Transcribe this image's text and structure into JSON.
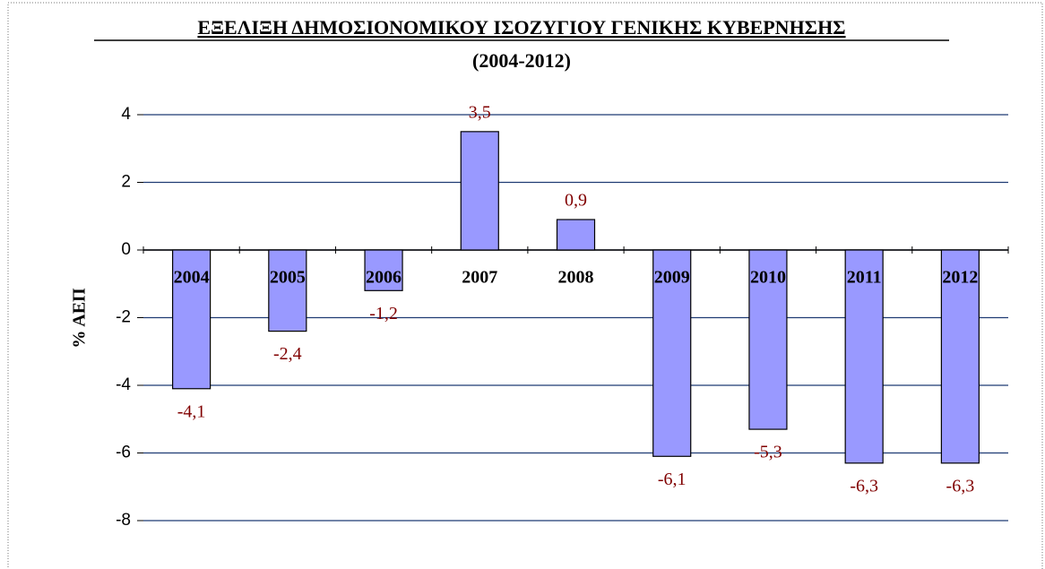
{
  "chart_data": {
    "type": "bar",
    "title": "ΕΞΕΛΙΞΗ ΔΗΜΟΣΙΟΝΟΜΙΚΟΥ ΙΣΟΖΥΓΙΟΥ ΓΕΝΙΚΗΣ ΚΥΒΕΡΝΗΣΗΣ",
    "subtitle": "(2004-2012)",
    "y_label": "% ΑΕΠ",
    "categories": [
      "2004",
      "2005",
      "2006",
      "2007",
      "2008",
      "2009",
      "2010",
      "2011",
      "2012"
    ],
    "values": [
      -4.1,
      -2.4,
      -1.2,
      3.5,
      0.9,
      -6.1,
      -5.3,
      -6.3,
      -6.3
    ],
    "value_labels": [
      "-4,1",
      "-2,4",
      "-1,2",
      "3,5",
      "0,9",
      "-6,1",
      "-5,3",
      "-6,3",
      "-6,3"
    ],
    "color": "#9999ff",
    "ylim": [
      -8,
      4
    ],
    "yticks": [
      -8,
      -6,
      -4,
      -2,
      0,
      2,
      4
    ],
    "grid": true
  }
}
